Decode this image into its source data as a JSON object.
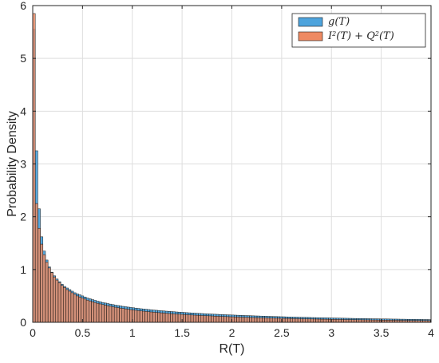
{
  "chart_data": {
    "type": "bar",
    "histogram": true,
    "title": "",
    "xlabel": "R(T)",
    "ylabel": "Probability Density",
    "xlim": [
      0,
      4
    ],
    "ylim": [
      0,
      6
    ],
    "xticks": [
      0,
      0.5,
      1,
      1.5,
      2,
      2.5,
      3,
      3.5,
      4
    ],
    "xtick_labels": [
      "0",
      "0.5",
      "1",
      "1.5",
      "2",
      "2.5",
      "3",
      "3.5",
      "4"
    ],
    "yticks": [
      0,
      1,
      2,
      3,
      4,
      5,
      6
    ],
    "ytick_labels": [
      "0",
      "1",
      "2",
      "3",
      "4",
      "5",
      "6"
    ],
    "grid": true,
    "legend_position": "top-right",
    "series": [
      {
        "name": "g(T)",
        "name_parts": [
          "g(T)"
        ],
        "color": "#4ea4dd",
        "bin_edges_start": 0,
        "bin_width": 0.0256,
        "values": [
          5.55,
          3.25,
          2.15,
          1.62,
          1.35,
          1.18,
          1.05,
          0.95,
          0.88,
          0.82,
          0.77,
          0.72,
          0.68,
          0.65,
          0.62,
          0.59,
          0.56,
          0.54,
          0.52,
          0.5,
          0.48,
          0.46,
          0.445,
          0.43,
          0.415,
          0.4,
          0.39,
          0.375,
          0.365,
          0.355,
          0.345,
          0.335,
          0.325,
          0.318,
          0.31,
          0.302,
          0.295,
          0.288,
          0.281,
          0.275,
          0.269,
          0.263,
          0.257,
          0.252,
          0.247,
          0.242,
          0.237,
          0.232,
          0.228,
          0.224,
          0.219,
          0.215,
          0.211,
          0.207,
          0.204,
          0.2,
          0.196,
          0.193,
          0.19,
          0.186,
          0.183,
          0.18,
          0.177,
          0.174,
          0.171,
          0.168,
          0.166,
          0.163,
          0.16,
          0.158,
          0.155,
          0.153,
          0.151,
          0.148,
          0.146,
          0.144,
          0.142,
          0.14,
          0.138,
          0.136,
          0.134,
          0.132,
          0.13,
          0.128,
          0.127,
          0.125,
          0.123,
          0.121,
          0.12,
          0.118,
          0.117,
          0.115,
          0.113,
          0.112,
          0.11,
          0.109,
          0.107,
          0.106,
          0.105,
          0.103,
          0.102,
          0.1,
          0.099,
          0.098,
          0.096,
          0.095,
          0.094,
          0.093,
          0.092,
          0.09,
          0.089,
          0.088,
          0.087,
          0.086,
          0.085,
          0.084,
          0.083,
          0.082,
          0.081,
          0.08,
          0.079,
          0.078,
          0.077,
          0.076,
          0.075,
          0.074,
          0.073,
          0.072,
          0.072,
          0.071,
          0.07,
          0.069,
          0.068,
          0.067,
          0.067,
          0.066,
          0.065,
          0.064,
          0.064,
          0.063,
          0.062,
          0.061,
          0.061,
          0.06,
          0.059,
          0.059,
          0.058,
          0.057,
          0.057,
          0.056,
          0.055,
          0.055,
          0.054,
          0.053,
          0.053,
          0.052
        ]
      },
      {
        "name": "I²(T) + Q²(T)",
        "name_parts": [
          "I",
          "2",
          "(T) + Q",
          "2",
          "(T)"
        ],
        "color": "#ee8a63",
        "bin_edges_start": 0,
        "bin_width": 0.0256,
        "values": [
          5.85,
          2.25,
          1.78,
          1.48,
          1.28,
          1.14,
          1.03,
          0.94,
          0.86,
          0.8,
          0.75,
          0.7,
          0.66,
          0.62,
          0.59,
          0.56,
          0.53,
          0.5,
          0.48,
          0.46,
          0.44,
          0.42,
          0.405,
          0.39,
          0.375,
          0.36,
          0.348,
          0.336,
          0.325,
          0.314,
          0.304,
          0.295,
          0.286,
          0.277,
          0.269,
          0.261,
          0.254,
          0.247,
          0.24,
          0.234,
          0.228,
          0.222,
          0.216,
          0.211,
          0.206,
          0.201,
          0.196,
          0.192,
          0.187,
          0.183,
          0.179,
          0.175,
          0.171,
          0.167,
          0.164,
          0.16,
          0.157,
          0.154,
          0.151,
          0.148,
          0.145,
          0.142,
          0.139,
          0.136,
          0.134,
          0.131,
          0.129,
          0.126,
          0.124,
          0.122,
          0.12,
          0.117,
          0.115,
          0.113,
          0.111,
          0.109,
          0.107,
          0.105,
          0.104,
          0.102,
          0.1,
          0.098,
          0.097,
          0.095,
          0.094,
          0.092,
          0.091,
          0.089,
          0.088,
          0.086,
          0.085,
          0.084,
          0.082,
          0.081,
          0.08,
          0.078,
          0.077,
          0.076,
          0.075,
          0.074,
          0.073,
          0.071,
          0.07,
          0.069,
          0.068,
          0.067,
          0.066,
          0.065,
          0.064,
          0.063,
          0.062,
          0.061,
          0.06,
          0.059,
          0.059,
          0.058,
          0.057,
          0.056,
          0.055,
          0.054,
          0.054,
          0.053,
          0.052,
          0.051,
          0.051,
          0.05,
          0.049,
          0.048,
          0.048,
          0.047,
          0.046,
          0.046,
          0.045,
          0.044,
          0.044,
          0.043,
          0.042,
          0.042,
          0.041,
          0.041,
          0.04,
          0.039,
          0.039,
          0.038,
          0.038,
          0.037,
          0.037,
          0.036,
          0.036,
          0.035,
          0.035,
          0.034,
          0.034,
          0.033,
          0.033,
          0.032,
          0.032
        ]
      }
    ]
  }
}
